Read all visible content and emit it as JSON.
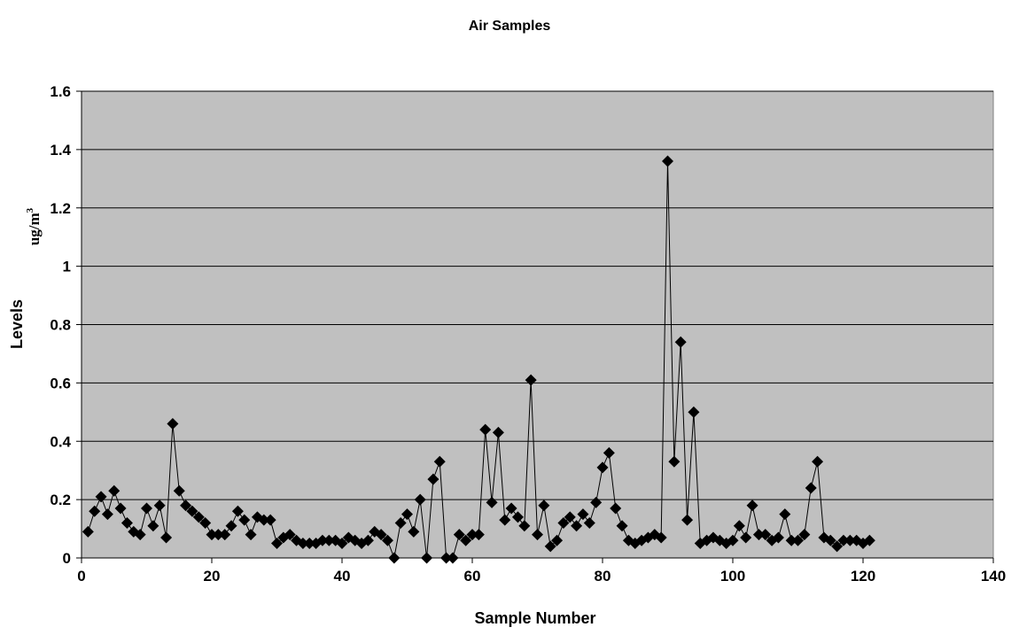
{
  "chart_data": {
    "type": "scatter",
    "title": "Air Samples",
    "xlabel": "Sample Number",
    "ylabel": "Levels",
    "yunit": {
      "base": "ug/m",
      "sup": "3"
    },
    "xlim": [
      0,
      140
    ],
    "ylim": [
      0,
      1.6
    ],
    "xticks": [
      "0",
      "20",
      "40",
      "60",
      "80",
      "100",
      "120",
      "140"
    ],
    "yticks": [
      "0",
      "0.2",
      "0.4",
      "0.6",
      "0.8",
      "1",
      "1.2",
      "1.4",
      "1.6"
    ],
    "grid": true,
    "legend": "none",
    "colors": {
      "plot_background": "#c0c0c0",
      "marker": "#000000",
      "line": "#000000",
      "gridline": "#000000"
    },
    "marker": "diamond",
    "series": [
      {
        "x": [
          1,
          2,
          3,
          4,
          5,
          6,
          7,
          8,
          9,
          10,
          11,
          12,
          13,
          14,
          15,
          16,
          17,
          18,
          19,
          20,
          21,
          22,
          23,
          24,
          25,
          26,
          27,
          28,
          29,
          30,
          31,
          32,
          33,
          34,
          35,
          36,
          37,
          38,
          39,
          40,
          41,
          42,
          43,
          44,
          45,
          46,
          47,
          48,
          49,
          50,
          51,
          52,
          53,
          54,
          55,
          56,
          57,
          58,
          59,
          60,
          61,
          62,
          63,
          64,
          65,
          66,
          67,
          68,
          69,
          70,
          71,
          72,
          73,
          74,
          75,
          76,
          77,
          78,
          79,
          80,
          81,
          82,
          83,
          84,
          85,
          86,
          87,
          88,
          89,
          90,
          91,
          92,
          93,
          94,
          95,
          96,
          97,
          98,
          99,
          100,
          101,
          102,
          103,
          104,
          105,
          106,
          107,
          108,
          109,
          110,
          111,
          112,
          113,
          114,
          115,
          116,
          117,
          118,
          119,
          120,
          121
        ],
        "y": [
          0.09,
          0.16,
          0.21,
          0.15,
          0.23,
          0.17,
          0.12,
          0.09,
          0.08,
          0.17,
          0.11,
          0.18,
          0.07,
          0.46,
          0.23,
          0.18,
          0.16,
          0.14,
          0.12,
          0.08,
          0.08,
          0.08,
          0.11,
          0.16,
          0.13,
          0.08,
          0.14,
          0.13,
          0.13,
          0.05,
          0.07,
          0.08,
          0.06,
          0.05,
          0.05,
          0.05,
          0.06,
          0.06,
          0.06,
          0.05,
          0.07,
          0.06,
          0.05,
          0.06,
          0.09,
          0.08,
          0.06,
          0.0,
          0.12,
          0.15,
          0.09,
          0.2,
          0.0,
          0.27,
          0.33,
          0.0,
          0.0,
          0.08,
          0.06,
          0.08,
          0.08,
          0.44,
          0.19,
          0.43,
          0.13,
          0.17,
          0.14,
          0.11,
          0.61,
          0.08,
          0.18,
          0.04,
          0.06,
          0.12,
          0.14,
          0.11,
          0.15,
          0.12,
          0.19,
          0.31,
          0.36,
          0.17,
          0.11,
          0.06,
          0.05,
          0.06,
          0.07,
          0.08,
          0.07,
          1.36,
          0.33,
          0.74,
          0.13,
          0.5,
          0.05,
          0.06,
          0.07,
          0.06,
          0.05,
          0.06,
          0.11,
          0.07,
          0.18,
          0.08,
          0.08,
          0.06,
          0.07,
          0.15,
          0.06,
          0.06,
          0.08,
          0.24,
          0.33,
          0.07,
          0.06,
          0.04,
          0.06,
          0.06,
          0.06,
          0.05,
          0.06
        ]
      }
    ]
  }
}
